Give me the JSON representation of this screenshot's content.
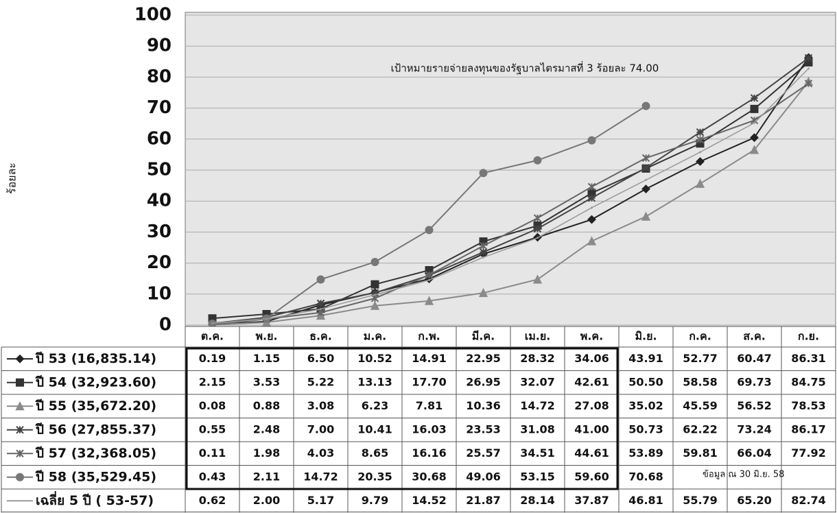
{
  "chart_data": {
    "type": "line",
    "y_label": "ร้อยละ",
    "annotation": "เป้าหมายรายจ่ายลงทุนของรัฐบาลไตรมาสที่ 3  ร้อยละ  74.00",
    "table_note": "ข้อมูล ณ  30 มิ.ย. 58",
    "categories": [
      "ต.ค.",
      "พ.ย.",
      "ธ.ค.",
      "ม.ค.",
      "ก.พ.",
      "มี.ค.",
      "เม.ย.",
      "พ.ค.",
      "มิ.ย.",
      "ก.ค.",
      "ส.ค.",
      "ก.ย."
    ],
    "ylim": [
      0,
      100
    ],
    "yticks": [
      0,
      10,
      20,
      30,
      40,
      50,
      60,
      70,
      80,
      90,
      100
    ],
    "grid": true,
    "series": [
      {
        "name": "ปี 53 (16,835.14)",
        "color": "#222222",
        "marker": "diamond",
        "values": [
          0.19,
          1.15,
          6.5,
          10.52,
          14.91,
          22.95,
          28.32,
          34.06,
          43.91,
          52.77,
          60.47,
          86.31
        ],
        "value_labels": [
          "0.19",
          "1.15",
          "6.50",
          "10.52",
          "14.91",
          "22.95",
          "28.32",
          "34.06",
          "43.91",
          "52.77",
          "60.47",
          "86.31"
        ]
      },
      {
        "name": "ปี 54 (32,923.60)",
        "color": "#333333",
        "marker": "square",
        "values": [
          2.15,
          3.53,
          5.22,
          13.13,
          17.7,
          26.95,
          32.07,
          42.61,
          50.5,
          58.58,
          69.73,
          84.75
        ],
        "value_labels": [
          "2.15",
          "3.53",
          "5.22",
          "13.13",
          "17.70",
          "26.95",
          "32.07",
          "42.61",
          "50.50",
          "58.58",
          "69.73",
          "84.75"
        ]
      },
      {
        "name": "ปี 55 (35,672.20)",
        "color": "#8a8a8a",
        "marker": "triangle",
        "values": [
          0.08,
          0.88,
          3.08,
          6.23,
          7.81,
          10.36,
          14.72,
          27.08,
          35.02,
          45.59,
          56.52,
          78.53
        ],
        "value_labels": [
          "0.08",
          "0.88",
          "3.08",
          "6.23",
          "7.81",
          "10.36",
          "14.72",
          "27.08",
          "35.02",
          "45.59",
          "56.52",
          "78.53"
        ]
      },
      {
        "name": "ปี 56 (27,855.37)",
        "color": "#444444",
        "marker": "star",
        "values": [
          0.55,
          2.48,
          7.0,
          10.41,
          16.03,
          23.53,
          31.08,
          41.0,
          50.73,
          62.22,
          73.24,
          86.17
        ],
        "value_labels": [
          "0.55",
          "2.48",
          "7.00",
          "10.41",
          "16.03",
          "23.53",
          "31.08",
          "41.00",
          "50.73",
          "62.22",
          "73.24",
          "86.17"
        ]
      },
      {
        "name": "ปี 57 (32,368.05)",
        "color": "#666666",
        "marker": "cross",
        "values": [
          0.11,
          1.98,
          4.03,
          8.65,
          16.16,
          25.57,
          34.51,
          44.61,
          53.89,
          59.81,
          66.04,
          77.92
        ],
        "value_labels": [
          "0.11",
          "1.98",
          "4.03",
          "8.65",
          "16.16",
          "25.57",
          "34.51",
          "44.61",
          "53.89",
          "59.81",
          "66.04",
          "77.92"
        ]
      },
      {
        "name": "ปี 58 (35,529.45)",
        "color": "#777777",
        "marker": "circle",
        "values": [
          0.43,
          2.11,
          14.72,
          20.35,
          30.68,
          49.06,
          53.15,
          59.6,
          70.68,
          null,
          null,
          null
        ],
        "value_labels": [
          "0.43",
          "2.11",
          "14.72",
          "20.35",
          "30.68",
          "49.06",
          "53.15",
          "59.60",
          "70.68",
          null,
          null,
          null
        ]
      },
      {
        "name": "เฉลี่ย 5 ปี ( 53-57)",
        "color": "#999999",
        "marker": "none",
        "values": [
          0.62,
          2.0,
          5.17,
          9.79,
          14.52,
          21.87,
          28.14,
          37.87,
          46.81,
          55.79,
          65.2,
          82.74
        ],
        "value_labels": [
          "0.62",
          "2.00",
          "5.17",
          "9.79",
          "14.52",
          "21.87",
          "28.14",
          "37.87",
          "46.81",
          "55.79",
          "65.20",
          "82.74"
        ]
      }
    ]
  }
}
